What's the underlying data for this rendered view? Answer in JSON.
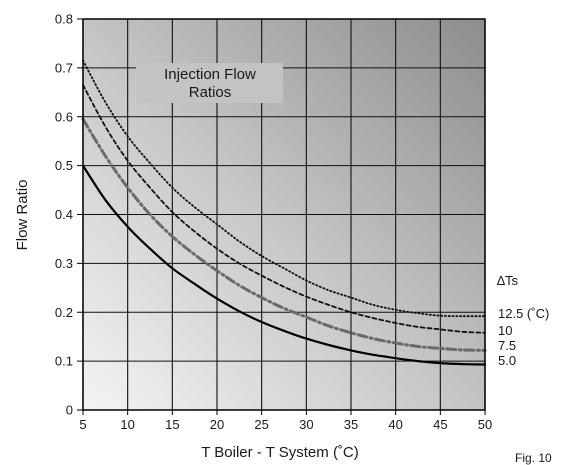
{
  "chart_data": {
    "type": "line",
    "title_lines": [
      "Injection Flow",
      "Ratios"
    ],
    "xlabel": "T Boiler - T System (˚C)",
    "ylabel": "Flow Ratio",
    "xlim": [
      5,
      50
    ],
    "ylim": [
      0,
      0.8
    ],
    "x_ticks": [
      "5",
      "10",
      "15",
      "20",
      "25",
      "30",
      "35",
      "40",
      "45",
      "50"
    ],
    "y_ticks": [
      "0",
      "0.1",
      "0.2",
      "0.3",
      "0.4",
      "0.5",
      "0.6",
      "0.7",
      "0.8"
    ],
    "grid": true,
    "legend_title": "∆Ts",
    "x": [
      5,
      7.5,
      10,
      12.5,
      15,
      17.5,
      20,
      22.5,
      25,
      27.5,
      30,
      32.5,
      35,
      37.5,
      40,
      42.5,
      45,
      47.5,
      50
    ],
    "series": [
      {
        "name": "12.5 (˚C)",
        "style": "dotted",
        "color": "#111111",
        "values": [
          0.715,
          0.63,
          0.56,
          0.505,
          0.455,
          0.415,
          0.38,
          0.345,
          0.315,
          0.29,
          0.265,
          0.245,
          0.23,
          0.215,
          0.205,
          0.198,
          0.193,
          0.192,
          0.192
        ]
      },
      {
        "name": "10",
        "style": "dashed",
        "color": "#111111",
        "values": [
          0.665,
          0.58,
          0.51,
          0.455,
          0.405,
          0.365,
          0.33,
          0.3,
          0.275,
          0.252,
          0.232,
          0.215,
          0.2,
          0.188,
          0.178,
          0.17,
          0.165,
          0.16,
          0.158
        ]
      },
      {
        "name": "7.5",
        "style": "dash-dot",
        "color": "#6a6a6a",
        "values": [
          0.595,
          0.52,
          0.455,
          0.4,
          0.355,
          0.318,
          0.285,
          0.255,
          0.23,
          0.208,
          0.19,
          0.172,
          0.158,
          0.146,
          0.137,
          0.13,
          0.126,
          0.123,
          0.122
        ]
      },
      {
        "name": "5.0",
        "style": "solid",
        "color": "#000000",
        "values": [
          0.5,
          0.43,
          0.375,
          0.33,
          0.29,
          0.258,
          0.228,
          0.202,
          0.18,
          0.162,
          0.146,
          0.133,
          0.122,
          0.113,
          0.106,
          0.1,
          0.096,
          0.094,
          0.093
        ]
      }
    ],
    "figure_label": "Fig. 10"
  }
}
